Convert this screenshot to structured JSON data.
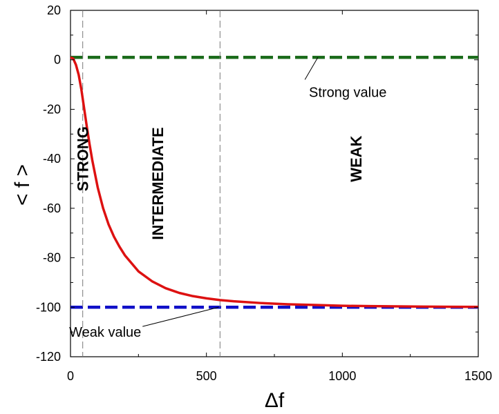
{
  "chart_data": {
    "type": "line",
    "xlabel": "Δf",
    "ylabel": "< f >",
    "xlim": [
      0,
      1500
    ],
    "ylim": [
      -120,
      20
    ],
    "x_ticks": [
      0,
      500,
      1000,
      1500
    ],
    "y_ticks": [
      20,
      0,
      -20,
      -40,
      -60,
      -80,
      -100,
      -120
    ],
    "grid": false,
    "series": [
      {
        "color": "#dd1111",
        "style": "solid",
        "x": [
          0,
          10,
          20,
          30,
          40,
          50,
          60,
          70,
          80,
          100,
          120,
          140,
          160,
          180,
          200,
          250,
          300,
          350,
          400,
          450,
          500,
          550,
          600,
          700,
          800,
          900,
          1000,
          1100,
          1200,
          1300,
          1400,
          1500
        ],
        "y": [
          1.0,
          0.5,
          -2.0,
          -6.0,
          -12.0,
          -19.5,
          -27.0,
          -34.0,
          -40.5,
          -51.5,
          -60.0,
          -66.5,
          -71.5,
          -75.5,
          -79.0,
          -85.5,
          -89.5,
          -92.3,
          -94.2,
          -95.5,
          -96.4,
          -97.1,
          -97.6,
          -98.3,
          -98.8,
          -99.1,
          -99.4,
          -99.55,
          -99.65,
          -99.75,
          -99.8,
          -99.85
        ]
      }
    ],
    "reference_lines": [
      {
        "y": 1,
        "color": "#1a6b1a",
        "style": "dashed"
      },
      {
        "y": -100,
        "color": "#1010c8",
        "style": "dashed"
      }
    ],
    "vertical_dividers": [
      {
        "x": 45,
        "color": "#777777",
        "style": "dashed"
      },
      {
        "x": 550,
        "color": "#777777",
        "style": "dashed"
      }
    ],
    "regions": [
      {
        "label": "STRONG",
        "x": 45,
        "y": -40
      },
      {
        "label": "INTERMEDIATE",
        "x": 320,
        "y": -50
      },
      {
        "label": "WEAK",
        "x": 1050,
        "y": -40
      }
    ],
    "annotations": [
      {
        "text": "Strong value",
        "x": 1020,
        "y": -13,
        "pointer_to": [
          910,
          1
        ]
      },
      {
        "text": "Weak value",
        "x": 260,
        "y": -110,
        "pointer_to": [
          545,
          -100
        ]
      }
    ]
  }
}
